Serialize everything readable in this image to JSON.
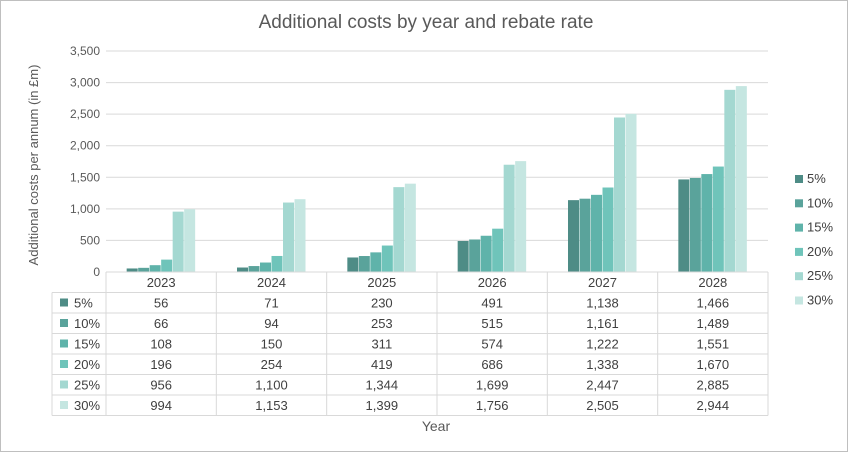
{
  "chart_data": {
    "type": "bar",
    "title": "Additional costs by year and rebate rate",
    "xlabel": "Year",
    "ylabel": "Additional costs per annum (in £m)",
    "ylim": [
      0,
      3500
    ],
    "yticks": [
      0,
      500,
      1000,
      1500,
      2000,
      2500,
      3000,
      3500
    ],
    "ytick_labels": [
      "0",
      "500",
      "1,000",
      "1,500",
      "2,000",
      "2,500",
      "3,000",
      "3,500"
    ],
    "grid": true,
    "legend_position": "right",
    "has_data_table": true,
    "categories": [
      "2023",
      "2024",
      "2025",
      "2026",
      "2027",
      "2028"
    ],
    "series": [
      {
        "name": "5%",
        "color": "#4e8c86",
        "values": [
          56,
          71,
          230,
          491,
          1138,
          1466
        ],
        "labels": [
          "56",
          "71",
          "230",
          "491",
          "1,138",
          "1,466"
        ]
      },
      {
        "name": "10%",
        "color": "#5aa39b",
        "values": [
          66,
          94,
          253,
          515,
          1161,
          1489
        ],
        "labels": [
          "66",
          "94",
          "253",
          "515",
          "1,161",
          "1,489"
        ]
      },
      {
        "name": "15%",
        "color": "#5fb3aa",
        "values": [
          108,
          150,
          311,
          574,
          1222,
          1551
        ],
        "labels": [
          "108",
          "150",
          "311",
          "574",
          "1,222",
          "1,551"
        ]
      },
      {
        "name": "20%",
        "color": "#6fc4ba",
        "values": [
          196,
          254,
          419,
          686,
          1338,
          1670
        ],
        "labels": [
          "196",
          "254",
          "419",
          "686",
          "1,338",
          "1,670"
        ]
      },
      {
        "name": "25%",
        "color": "#a4d8d1",
        "values": [
          956,
          1100,
          1344,
          1699,
          2447,
          2885
        ],
        "labels": [
          "956",
          "1,100",
          "1,344",
          "1,699",
          "2,447",
          "2,885"
        ]
      },
      {
        "name": "30%",
        "color": "#c5e6e1",
        "values": [
          994,
          1153,
          1399,
          1756,
          2505,
          2944
        ],
        "labels": [
          "994",
          "1,153",
          "1,399",
          "1,756",
          "2,505",
          "2,944"
        ]
      }
    ]
  }
}
